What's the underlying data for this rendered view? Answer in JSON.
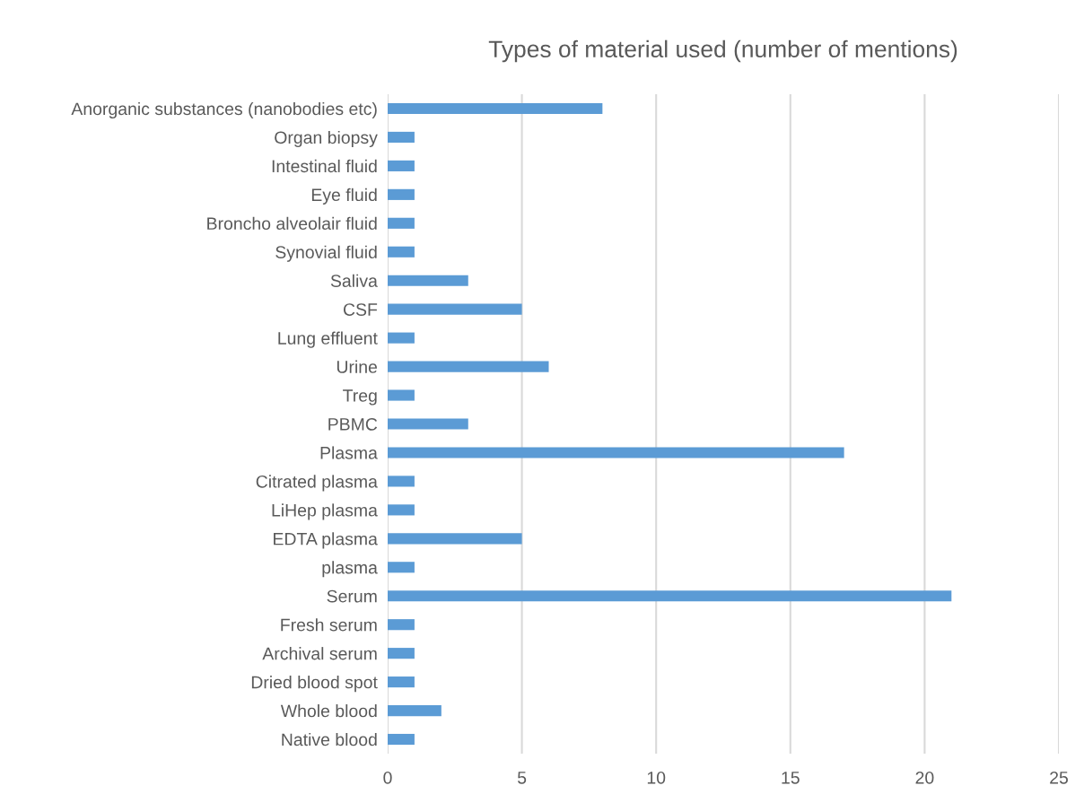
{
  "chart_data": {
    "type": "bar",
    "orientation": "horizontal",
    "title": "Types of material used (number of mentions)",
    "categories": [
      "Anorganic substances (nanobodies etc)",
      "Organ biopsy",
      "Intestinal fluid",
      "Eye fluid",
      "Broncho alveolair fluid",
      "Synovial fluid",
      "Saliva",
      "CSF",
      "Lung effluent",
      "Urine",
      "Treg",
      "PBMC",
      "Plasma",
      "Citrated plasma",
      "LiHep plasma",
      "EDTA plasma",
      "plasma",
      "Serum",
      "Fresh serum",
      "Archival serum",
      "Dried blood spot",
      "Whole blood",
      "Native blood"
    ],
    "values": [
      8,
      1,
      1,
      1,
      1,
      1,
      3,
      5,
      1,
      6,
      1,
      3,
      17,
      1,
      1,
      5,
      1,
      21,
      1,
      1,
      1,
      2,
      1
    ],
    "color": "#5b9bd5",
    "xlim": [
      0,
      25
    ],
    "xticks": [
      0,
      5,
      10,
      15,
      20,
      25
    ],
    "grid": "x"
  }
}
